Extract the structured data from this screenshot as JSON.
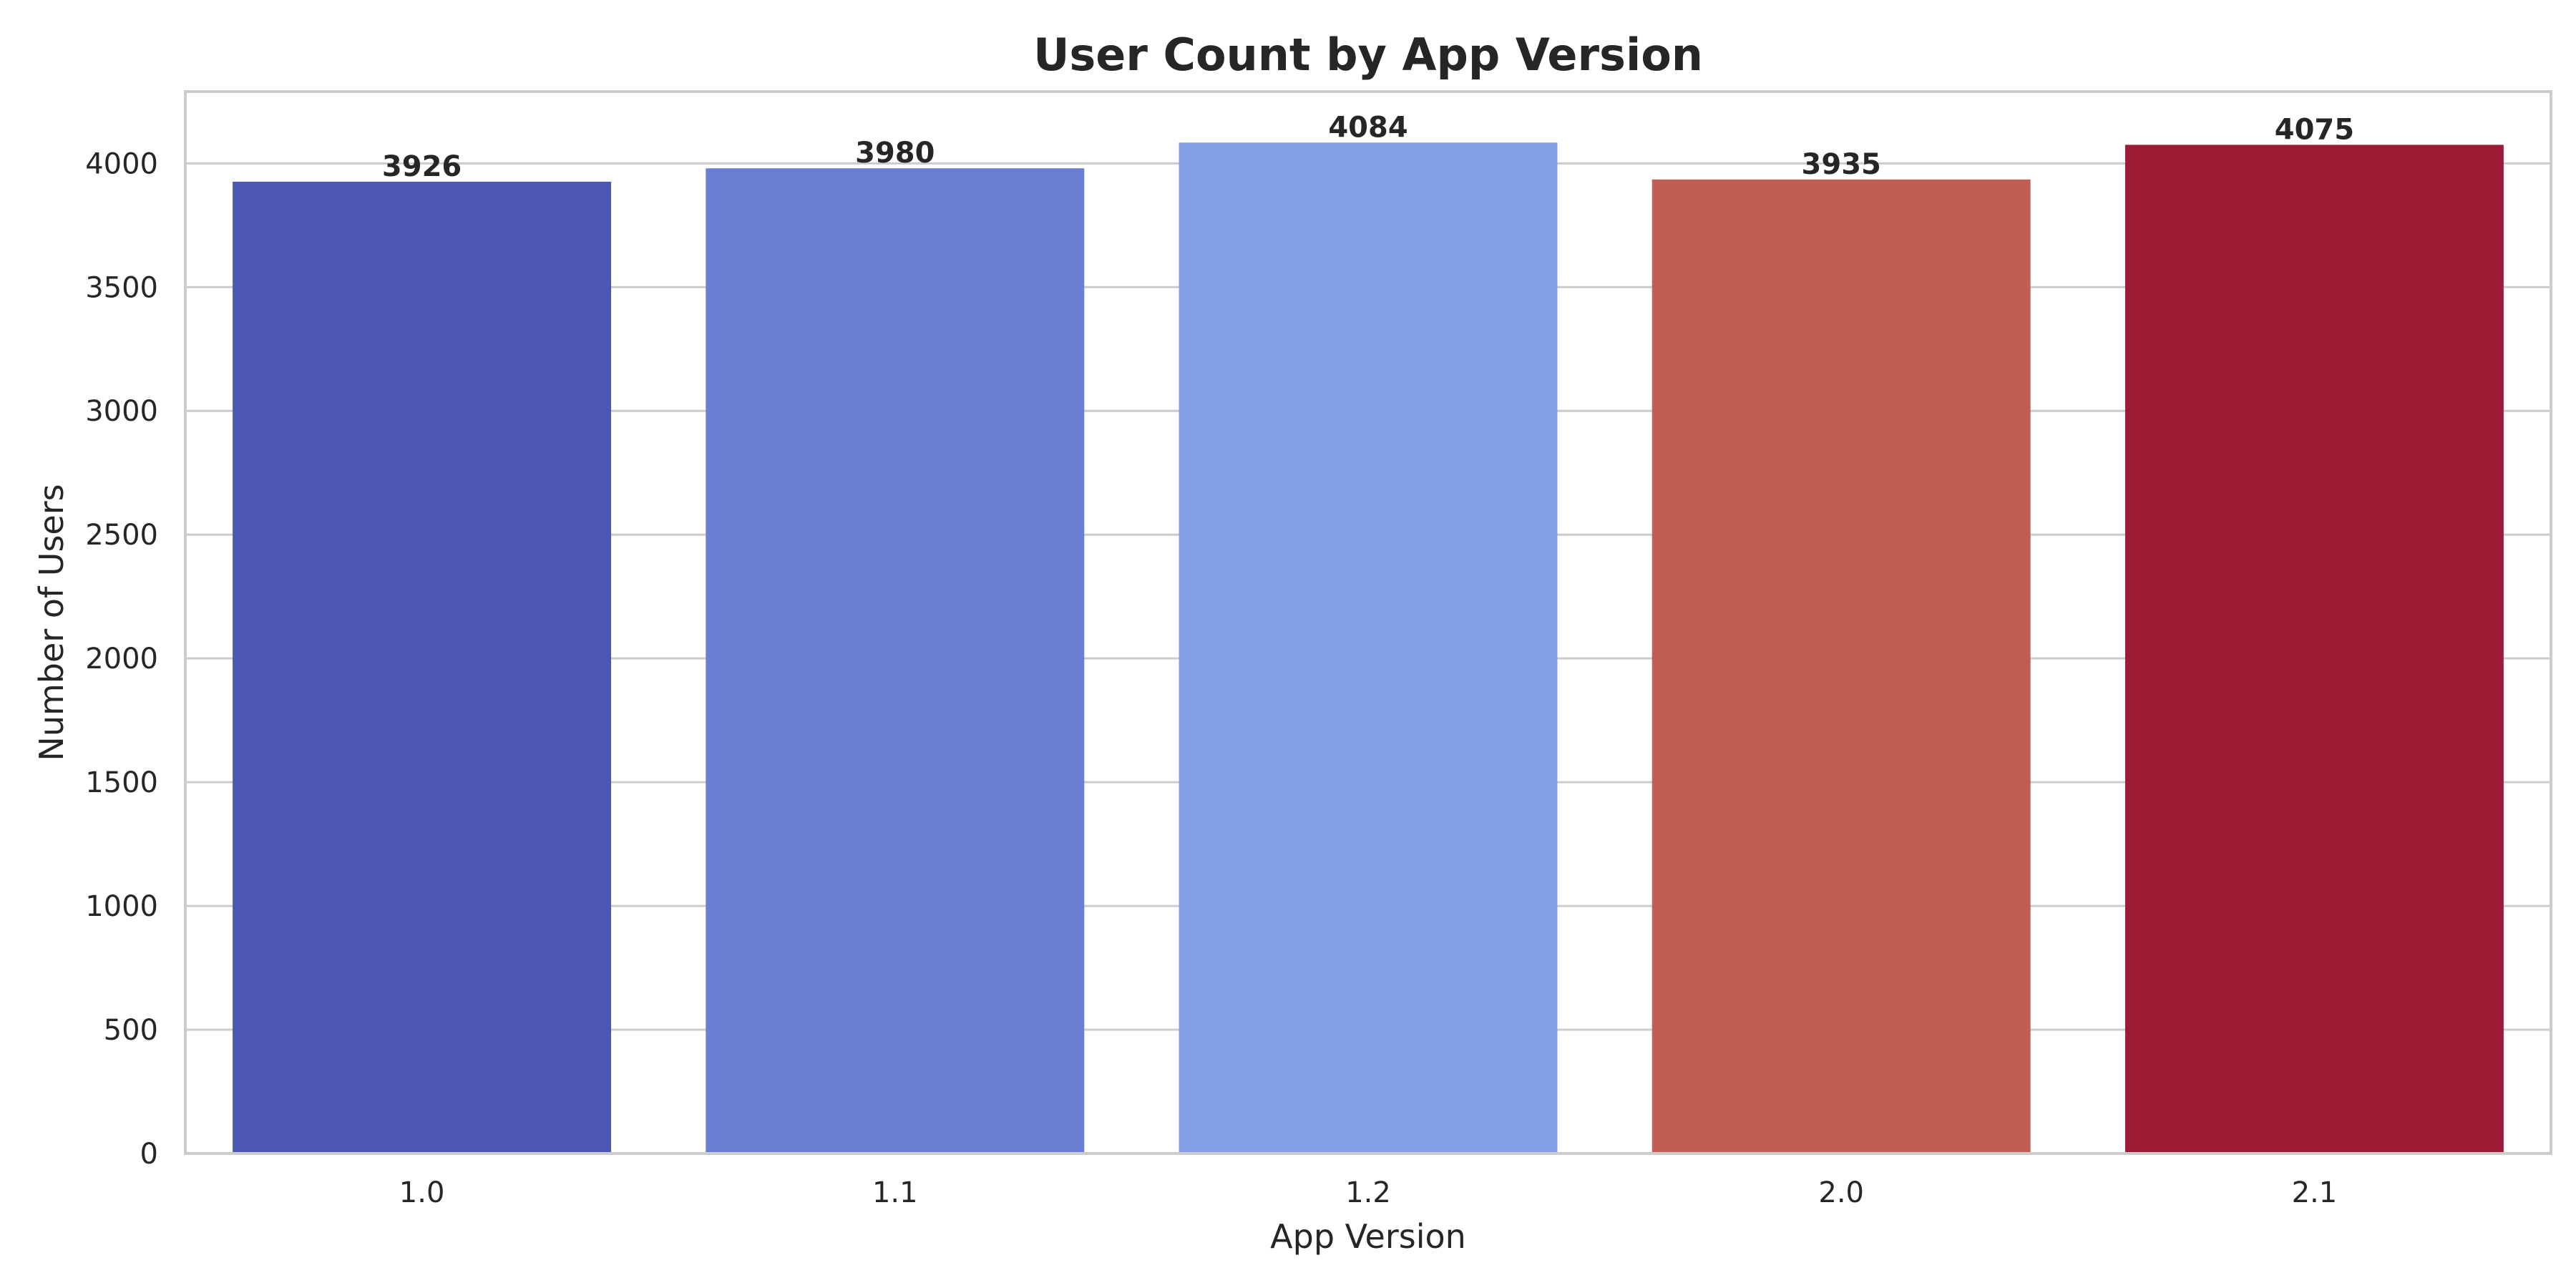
{
  "chart_data": {
    "type": "bar",
    "title": "User Count by App Version",
    "xlabel": "App Version",
    "ylabel": "Number of Users",
    "categories": [
      "1.0",
      "1.1",
      "1.2",
      "2.0",
      "2.1"
    ],
    "values": [
      3926,
      3980,
      4084,
      3935,
      4075
    ],
    "data_labels": [
      "3926",
      "3980",
      "4084",
      "3935",
      "4075"
    ],
    "colors": [
      "#4b57b0",
      "#6a7fd1",
      "#849ee3",
      "#c15e53",
      "#9c1b35"
    ],
    "ylim": [
      0,
      4290
    ],
    "yticks": [
      0,
      500,
      1000,
      1500,
      2000,
      2500,
      3000,
      3500,
      4000
    ],
    "ytick_labels": [
      "0",
      "500",
      "1000",
      "1500",
      "2000",
      "2500",
      "3000",
      "3500",
      "4000"
    ],
    "grid": "horizontal",
    "legend": "none"
  }
}
